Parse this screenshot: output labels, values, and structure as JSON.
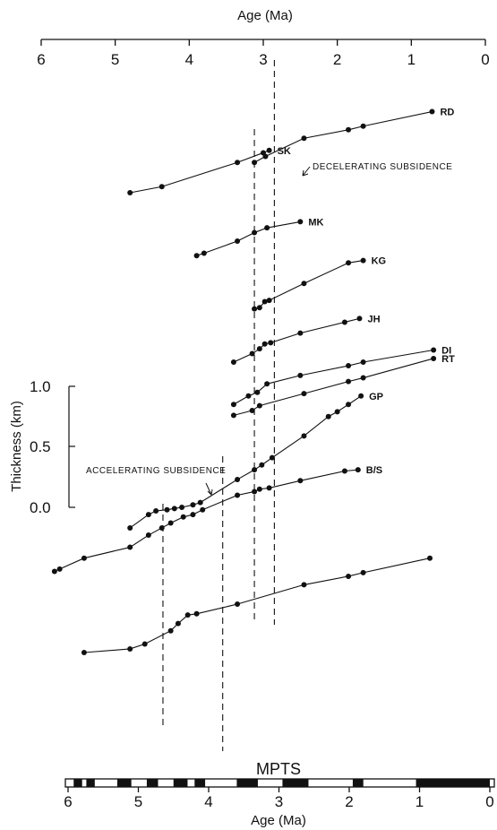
{
  "chart_data": {
    "type": "line",
    "x_axis": {
      "title_top": "Age (Ma)",
      "title_bottom": "Age (Ma)",
      "range": [
        6,
        0
      ],
      "ticks": [
        "6",
        "5",
        "4",
        "3",
        "2",
        "1",
        "0"
      ],
      "bottom_ticks": [
        "6",
        "5",
        "4",
        "3",
        "2",
        "1",
        "0"
      ]
    },
    "y_axis": {
      "title": "Thickness (km)",
      "ticks": [
        "1.0",
        "0.5",
        "0.0"
      ],
      "scale_note": "relative thickness; each series offset vertically"
    },
    "mpts_label": "MPTS",
    "annotations": {
      "decelerating": "DECELERATING SUBSIDENCE",
      "accelerating": "ACCELERATING SUBSIDENCE"
    },
    "reference_lines_age": [
      4.65,
      3.8,
      3.12,
      2.85
    ],
    "mpts_bands": [
      [
        5.92,
        5.8
      ],
      [
        5.74,
        5.62
      ],
      [
        5.3,
        5.1
      ],
      [
        4.88,
        4.72
      ],
      [
        4.5,
        4.3
      ],
      [
        4.2,
        4.05
      ],
      [
        3.6,
        3.3
      ],
      [
        2.95,
        2.58
      ],
      [
        1.95,
        1.8
      ],
      [
        1.05,
        0
      ]
    ],
    "series": [
      {
        "name": "SK",
        "offset": 2.6,
        "points": [
          [
            4.8,
            0.0
          ],
          [
            4.37,
            0.05
          ],
          [
            3.35,
            0.25
          ],
          [
            3.0,
            0.33
          ],
          [
            2.92,
            0.35
          ]
        ]
      },
      {
        "name": "RD",
        "offset": 2.0,
        "points": [
          [
            3.12,
            0.85
          ],
          [
            2.97,
            0.9
          ],
          [
            2.45,
            1.05
          ],
          [
            1.85,
            1.12
          ],
          [
            1.65,
            1.15
          ],
          [
            0.72,
            1.27
          ]
        ]
      },
      {
        "name": "MK",
        "offset": 2.6,
        "points": [
          [
            3.9,
            -0.52
          ],
          [
            3.8,
            -0.5
          ],
          [
            3.35,
            -0.4
          ],
          [
            3.12,
            -0.33
          ],
          [
            2.95,
            -0.29
          ],
          [
            2.5,
            -0.24
          ]
        ]
      },
      {
        "name": "KG",
        "offset": 1.2,
        "points": [
          [
            3.12,
            0.44
          ],
          [
            3.05,
            0.45
          ],
          [
            2.98,
            0.5
          ],
          [
            2.92,
            0.51
          ],
          [
            2.45,
            0.65
          ],
          [
            1.85,
            0.82
          ],
          [
            1.65,
            0.84
          ]
        ]
      },
      {
        "name": "JH",
        "offset": 1.2,
        "points": [
          [
            3.4,
            0.0
          ],
          [
            3.15,
            0.07
          ],
          [
            3.05,
            0.11
          ],
          [
            2.98,
            0.15
          ],
          [
            2.9,
            0.16
          ],
          [
            2.5,
            0.24
          ],
          [
            1.9,
            0.33
          ],
          [
            1.7,
            0.36
          ]
        ]
      },
      {
        "name": "DI",
        "offset": 0.8,
        "points": [
          [
            3.4,
            0.05
          ],
          [
            3.2,
            0.12
          ],
          [
            3.08,
            0.15
          ],
          [
            2.95,
            0.22
          ],
          [
            2.5,
            0.29
          ],
          [
            1.85,
            0.37
          ],
          [
            1.65,
            0.4
          ],
          [
            0.7,
            0.5
          ]
        ]
      },
      {
        "name": "RT",
        "offset": 0.0,
        "points": [
          [
            3.4,
            0.76
          ],
          [
            3.15,
            0.8
          ],
          [
            3.05,
            0.84
          ],
          [
            2.45,
            0.94
          ],
          [
            1.85,
            1.04
          ],
          [
            1.65,
            1.07
          ],
          [
            0.7,
            1.23
          ]
        ]
      },
      {
        "name": "GP",
        "offset": 0.0,
        "points": [
          [
            4.8,
            -0.17
          ],
          [
            4.55,
            -0.06
          ],
          [
            4.45,
            -0.03
          ],
          [
            4.3,
            -0.02
          ],
          [
            4.2,
            -0.01
          ],
          [
            4.1,
            0.0
          ],
          [
            3.95,
            0.02
          ],
          [
            3.85,
            0.04
          ],
          [
            3.35,
            0.23
          ],
          [
            3.12,
            0.31
          ],
          [
            3.02,
            0.35
          ],
          [
            2.88,
            0.41
          ],
          [
            2.45,
            0.59
          ],
          [
            2.12,
            0.75
          ],
          [
            2.0,
            0.79
          ],
          [
            1.85,
            0.85
          ],
          [
            1.68,
            0.92
          ]
        ]
      },
      {
        "name": "B/S",
        "offset": 0.0,
        "points": [
          [
            5.82,
            -0.53
          ],
          [
            5.75,
            -0.51
          ],
          [
            5.42,
            -0.42
          ],
          [
            4.8,
            -0.33
          ],
          [
            4.55,
            -0.23
          ],
          [
            4.37,
            -0.17
          ],
          [
            4.25,
            -0.13
          ],
          [
            4.08,
            -0.08
          ],
          [
            3.95,
            -0.06
          ],
          [
            3.82,
            -0.02
          ],
          [
            3.35,
            0.1
          ],
          [
            3.12,
            0.13
          ],
          [
            3.05,
            0.15
          ],
          [
            2.92,
            0.16
          ],
          [
            2.5,
            0.22
          ],
          [
            1.9,
            0.3
          ],
          [
            1.72,
            0.31
          ]
        ]
      },
      {
        "name": "",
        "offset": 0.0,
        "points": [
          [
            5.42,
            -1.2
          ],
          [
            4.8,
            -1.17
          ],
          [
            4.6,
            -1.13
          ],
          [
            4.25,
            -1.02
          ],
          [
            4.15,
            -0.96
          ],
          [
            4.02,
            -0.89
          ],
          [
            3.9,
            -0.88
          ],
          [
            3.35,
            -0.8
          ],
          [
            2.45,
            -0.64
          ],
          [
            1.85,
            -0.57
          ],
          [
            1.65,
            -0.54
          ],
          [
            0.75,
            -0.42
          ]
        ]
      }
    ]
  }
}
